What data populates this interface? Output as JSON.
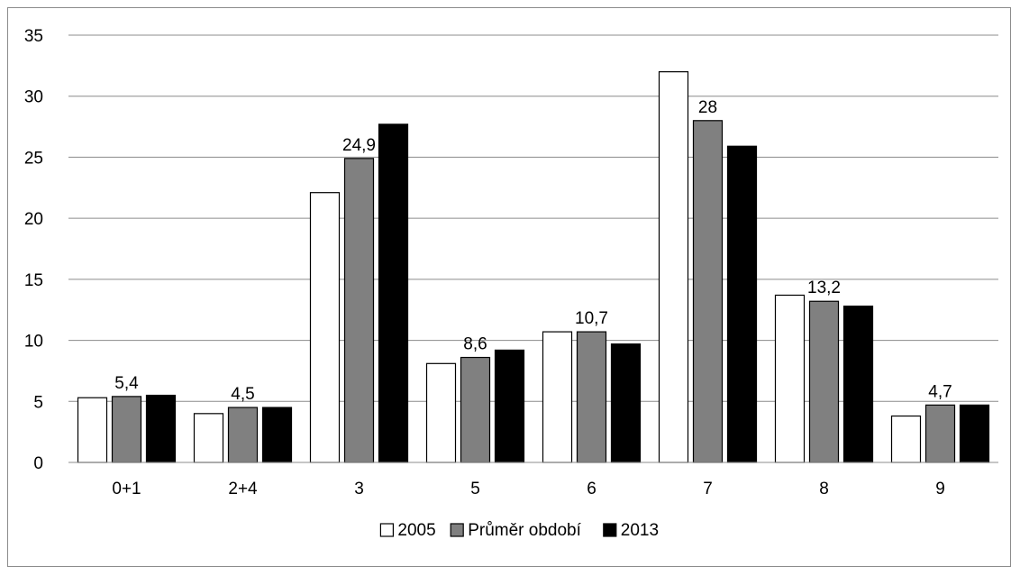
{
  "chart_data": {
    "type": "bar",
    "title": "",
    "xlabel": "",
    "ylabel": "",
    "ylim": [
      0,
      35
    ],
    "yticks": [
      0,
      5,
      10,
      15,
      20,
      25,
      30,
      35
    ],
    "grid": true,
    "legend_position": "bottom",
    "categories": [
      "0+1",
      "2+4",
      "3",
      "5",
      "6",
      "7",
      "8",
      "9"
    ],
    "series": [
      {
        "name": "2005",
        "values": [
          5.3,
          4.0,
          22.1,
          8.1,
          10.7,
          32.0,
          13.7,
          3.8
        ],
        "color": "#ffffff",
        "stroke": "#000000"
      },
      {
        "name": "Průměr období",
        "values": [
          5.4,
          4.5,
          24.9,
          8.6,
          10.7,
          28.0,
          13.2,
          4.7
        ],
        "color": "#808080",
        "stroke": "#000000"
      },
      {
        "name": "2013",
        "values": [
          5.5,
          4.5,
          27.7,
          9.2,
          9.7,
          25.9,
          12.8,
          4.7
        ],
        "color": "#000000",
        "stroke": "#000000"
      }
    ],
    "data_labels": [
      {
        "series": 1,
        "category": 0,
        "text": "5,4"
      },
      {
        "series": 1,
        "category": 1,
        "text": "4,5"
      },
      {
        "series": 1,
        "category": 2,
        "text": "24,9"
      },
      {
        "series": 1,
        "category": 3,
        "text": "8,6"
      },
      {
        "series": 1,
        "category": 4,
        "text": "10,7"
      },
      {
        "series": 1,
        "category": 5,
        "text": "28"
      },
      {
        "series": 1,
        "category": 6,
        "text": "13,2"
      },
      {
        "series": 1,
        "category": 7,
        "text": "4,7"
      }
    ]
  }
}
